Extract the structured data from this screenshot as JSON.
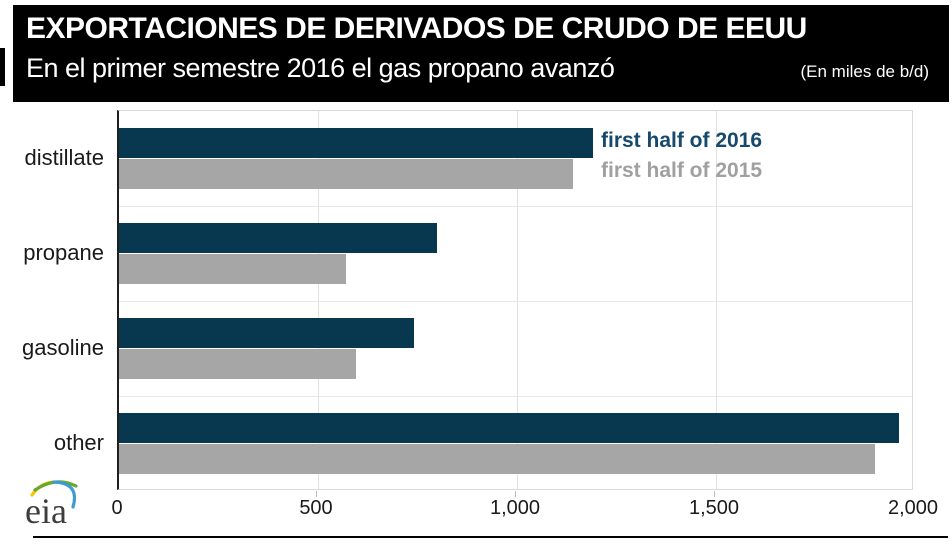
{
  "header": {
    "title": "EXPORTACIONES DE DERIVADOS DE CRUDO DE EEUU",
    "subtitle": "En el primer semestre 2016 el gas propano avanzó",
    "unit_note": "(En miles de b/d)",
    "background_color": "#000000",
    "text_color": "#ffffff"
  },
  "chart_data": {
    "type": "bar",
    "orientation": "horizontal",
    "categories": [
      "distillate",
      "propane",
      "gasoline",
      "other"
    ],
    "series": [
      {
        "name": "first half of 2016",
        "color": "#07384f",
        "legend_text_color": "#16496b",
        "values": [
          1190,
          800,
          740,
          1960
        ]
      },
      {
        "name": "first half of 2015",
        "color": "#a6a6a6",
        "legend_text_color": "#a0a0a0",
        "values": [
          1140,
          570,
          595,
          1900
        ]
      }
    ],
    "xlim": [
      0,
      2000
    ],
    "x_tick_values": [
      0,
      500,
      1000,
      1500,
      2000
    ],
    "x_tick_labels": [
      "0",
      "500",
      "1,000",
      "1,500",
      "2,000"
    ],
    "grid": "vertical-light",
    "legend_position": "inside-top-right",
    "axis_line_color": "#1f1f1f",
    "gridline_color": "#e2e2e2"
  },
  "logo": {
    "text": "eia",
    "swoosh_colors": [
      "#f5c500",
      "#68a82d",
      "#3d9bd4"
    ]
  }
}
